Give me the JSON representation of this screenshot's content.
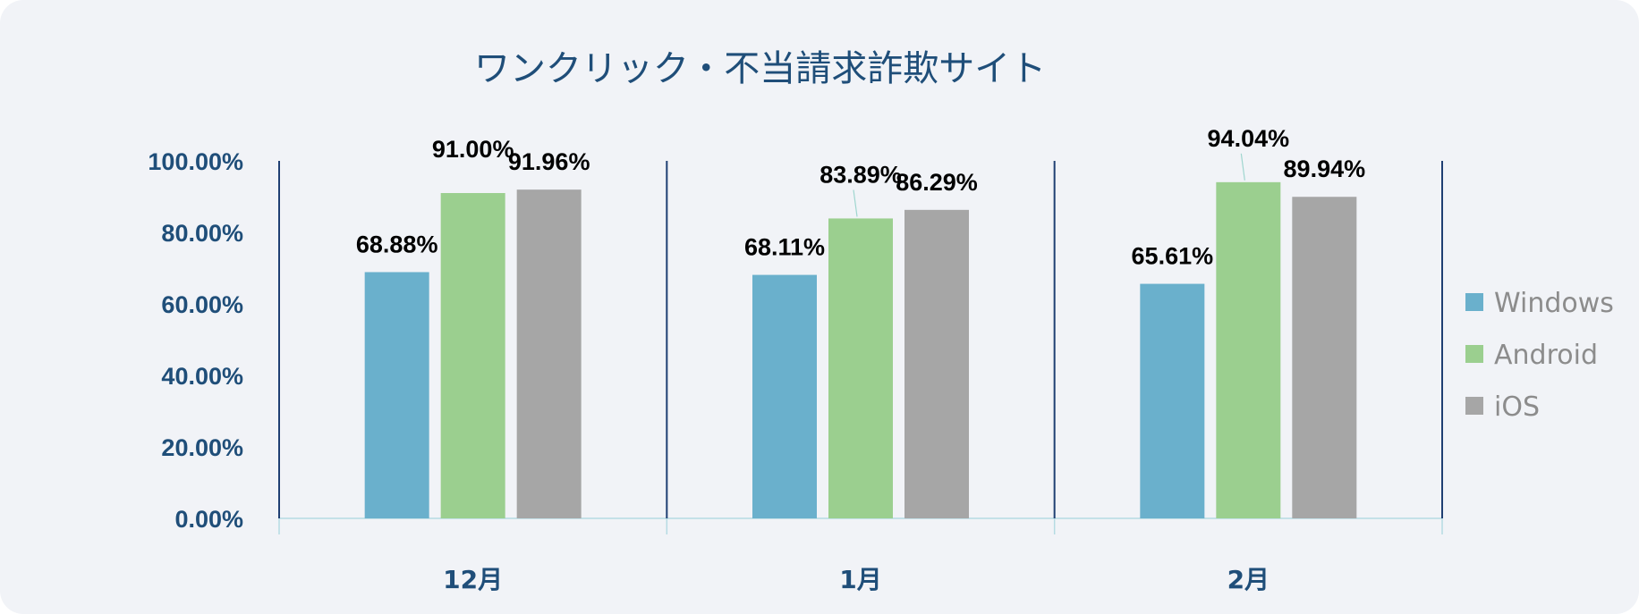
{
  "chart_data": {
    "type": "bar",
    "title": "ワンクリック・不当請求詐欺サイト",
    "categories": [
      "12月",
      "1月",
      "2月"
    ],
    "series": [
      {
        "name": "Windows",
        "values": [
          68.88,
          68.11,
          65.61
        ],
        "labels": [
          "68.88%",
          "68.11%",
          "65.61%"
        ],
        "color": "#6ab0cc"
      },
      {
        "name": "Android",
        "values": [
          91.0,
          83.89,
          94.04
        ],
        "labels": [
          "91.00%",
          "83.89%",
          "94.04%"
        ],
        "color": "#9bcf8f"
      },
      {
        "name": "iOS",
        "values": [
          91.96,
          86.29,
          89.94
        ],
        "labels": [
          "91.96%",
          "86.29%",
          "89.94%"
        ],
        "color": "#a6a6a6"
      }
    ],
    "ylim": [
      0,
      100
    ],
    "yticks": [
      0,
      20,
      40,
      60,
      80,
      100
    ],
    "ytick_labels": [
      "0.00%",
      "20.00%",
      "40.00%",
      "60.00%",
      "80.00%",
      "100.00%"
    ],
    "legend_position": "right",
    "grid": false,
    "colors": {
      "axis": "#1f3f73",
      "baseline": "#b5dbe3",
      "text": "#1f4e79",
      "background": "#f1f3f7"
    }
  }
}
